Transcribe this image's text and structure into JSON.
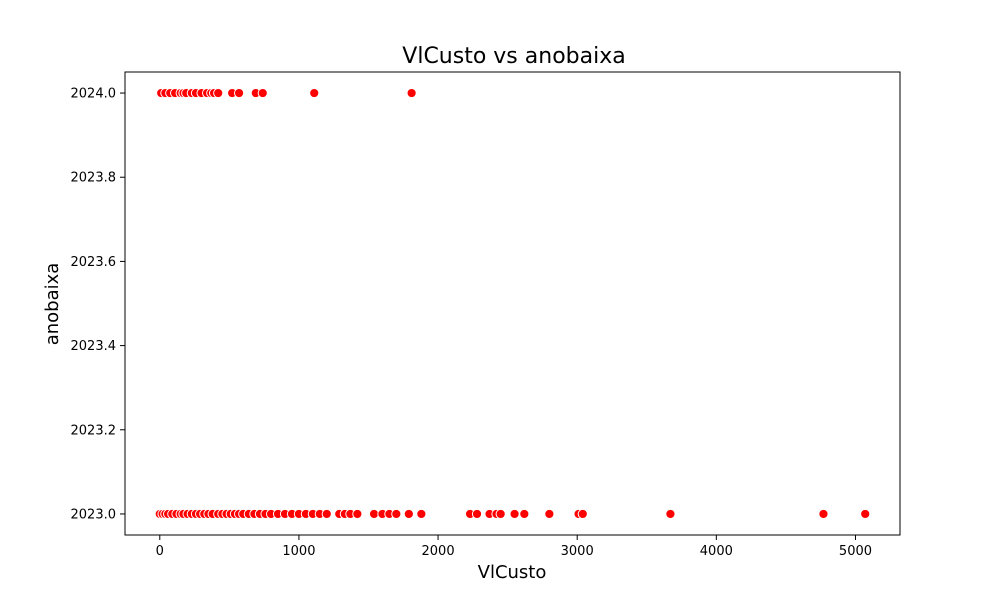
{
  "chart_data": {
    "type": "scatter",
    "title": "VlCusto vs anobaixa",
    "xlabel": "VlCusto",
    "ylabel": "anobaixa",
    "xlim": [
      -250,
      5320
    ],
    "ylim": [
      2022.95,
      2024.05
    ],
    "xticks": [
      0,
      1000,
      2000,
      3000,
      4000,
      5000
    ],
    "yticks": [
      2023.0,
      2023.2,
      2023.4,
      2023.6,
      2023.8,
      2024.0
    ],
    "xtick_labels": [
      "0",
      "1000",
      "2000",
      "3000",
      "4000",
      "5000"
    ],
    "ytick_labels": [
      "2023.0",
      "2023.2",
      "2023.4",
      "2023.6",
      "2023.8",
      "2024.0"
    ],
    "grid": false,
    "point_color": "#ff0000",
    "series": [
      {
        "x": [
          10,
          40,
          75,
          110,
          150,
          170,
          190,
          230,
          260,
          300,
          340,
          370,
          390,
          420,
          520,
          570,
          690,
          740,
          1110,
          1810
        ],
        "y": [
          2024,
          2024,
          2024,
          2024,
          2024,
          2024,
          2024,
          2024,
          2024,
          2024,
          2024,
          2024,
          2024,
          2024,
          2024,
          2024,
          2024,
          2024,
          2024,
          2024
        ]
      },
      {
        "x": [
          0,
          20,
          40,
          60,
          90,
          120,
          150,
          170,
          200,
          230,
          260,
          290,
          320,
          350,
          380,
          420,
          450,
          480,
          510,
          540,
          570,
          600,
          640,
          680,
          720,
          760,
          800,
          850,
          900,
          950,
          1000,
          1050,
          1100,
          1150,
          1200,
          1290,
          1330,
          1370,
          1420,
          1540,
          1600,
          1650,
          1700,
          1790,
          1880,
          2230,
          2280,
          2370,
          2420,
          2450,
          2550,
          2620,
          2800,
          3010,
          3040,
          3670,
          4770,
          5070
        ],
        "y": [
          2023,
          2023,
          2023,
          2023,
          2023,
          2023,
          2023,
          2023,
          2023,
          2023,
          2023,
          2023,
          2023,
          2023,
          2023,
          2023,
          2023,
          2023,
          2023,
          2023,
          2023,
          2023,
          2023,
          2023,
          2023,
          2023,
          2023,
          2023,
          2023,
          2023,
          2023,
          2023,
          2023,
          2023,
          2023,
          2023,
          2023,
          2023,
          2023,
          2023,
          2023,
          2023,
          2023,
          2023,
          2023,
          2023,
          2023,
          2023,
          2023,
          2023,
          2023,
          2023,
          2023,
          2023,
          2023,
          2023,
          2023,
          2023
        ]
      }
    ]
  }
}
